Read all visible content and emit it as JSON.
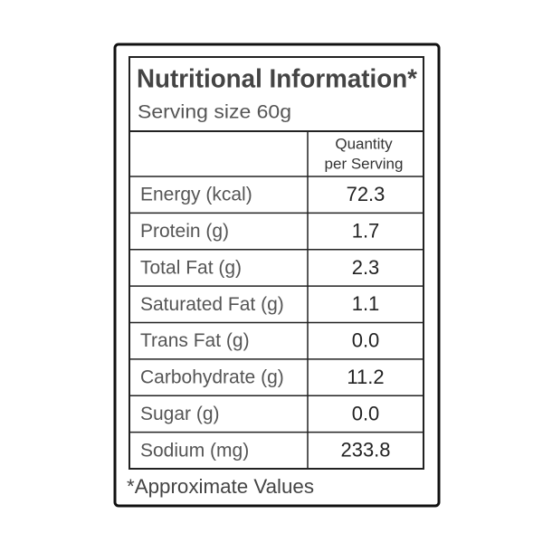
{
  "header": {
    "title": "Nutritional Information*",
    "serving_size": "Serving size 60g"
  },
  "table": {
    "column_header": [
      "Quantity",
      "per Serving"
    ],
    "rows": [
      [
        "Energy (kcal)",
        "72.3"
      ],
      [
        "Protein (g)",
        "1.7"
      ],
      [
        "Total Fat (g)",
        "2.3"
      ],
      [
        "Saturated Fat (g)",
        "1.1"
      ],
      [
        "Trans Fat (g)",
        "0.0"
      ],
      [
        "Carbohydrate (g)",
        "11.2"
      ],
      [
        "Sugar (g)",
        "0.0"
      ],
      [
        "Sodium (mg)",
        "233.8"
      ]
    ]
  },
  "footnote": "*Approximate Values"
}
